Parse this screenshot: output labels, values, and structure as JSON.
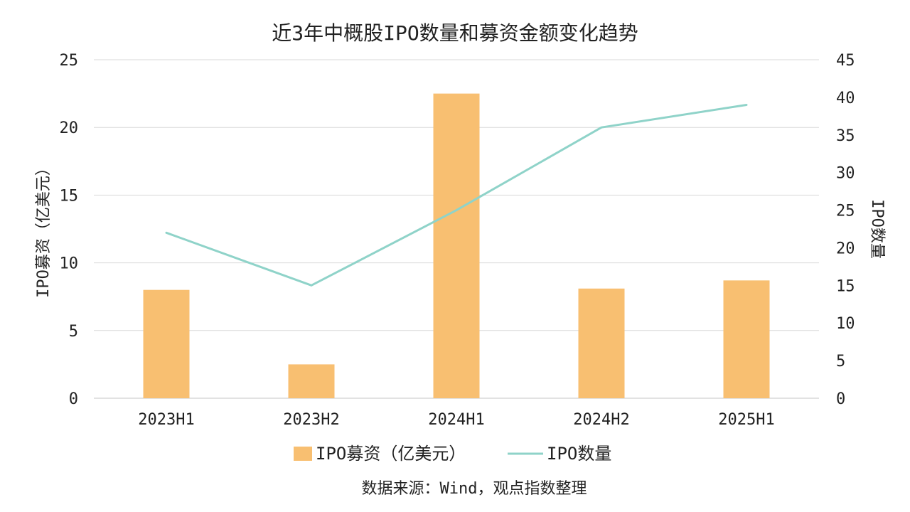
{
  "chart_data": {
    "type": "bar+line",
    "title": "近3年中概股IPO数量和募资金额变化趋势",
    "categories": [
      "2023H1",
      "2023H2",
      "2024H1",
      "2024H2",
      "2025H1"
    ],
    "series": [
      {
        "name": "IPO募资（亿美元）",
        "type": "bar",
        "axis": "left",
        "color": "#F8BF71",
        "values": [
          8.0,
          2.5,
          22.5,
          8.1,
          8.7
        ]
      },
      {
        "name": "IPO数量",
        "type": "line",
        "axis": "right",
        "color": "#8FD3C9",
        "values": [
          22,
          15,
          25,
          36,
          39
        ]
      }
    ],
    "y_left": {
      "label": "IPO募资（亿美元）",
      "ylim": [
        0,
        25
      ],
      "ticks": [
        "0",
        "5",
        "10",
        "15",
        "20",
        "25"
      ]
    },
    "y_right": {
      "label": "IPO数量",
      "ylim": [
        0,
        45
      ],
      "ticks": [
        "0",
        "5",
        "10",
        "15",
        "20",
        "25",
        "30",
        "35",
        "40",
        "45"
      ]
    },
    "grid": true,
    "legend": "bottom"
  },
  "source_note": "数据来源：Wind，观点指数整理"
}
